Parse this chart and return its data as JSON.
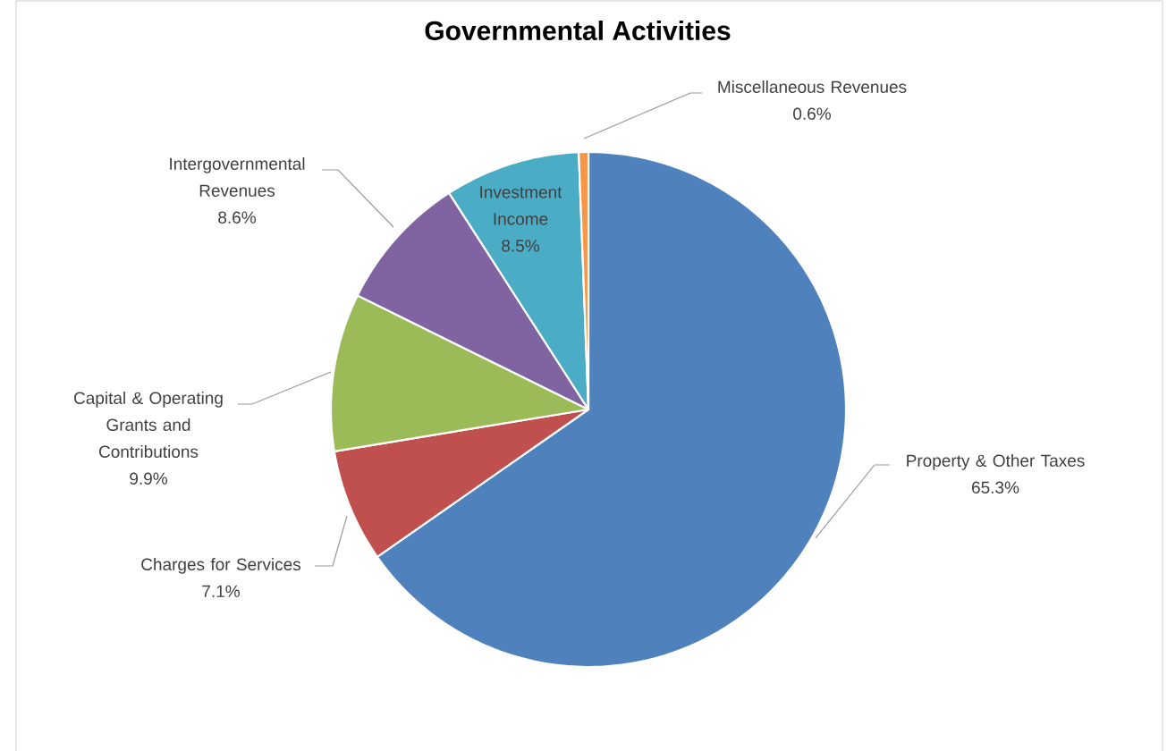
{
  "chart_data": {
    "type": "pie",
    "title": "Governmental Activities",
    "categories": [
      "Property & Other Taxes",
      "Charges for Services",
      "Capital & Operating Grants and Contributions",
      "Intergovernmental Revenues",
      "Investment Income",
      "Miscellaneous Revenues"
    ],
    "values": [
      65.3,
      7.1,
      9.9,
      8.6,
      8.5,
      0.6
    ],
    "colors": [
      "#4f81bd",
      "#c0504d",
      "#9bbb59",
      "#8064a2",
      "#4bacc6",
      "#f79646"
    ],
    "value_labels": [
      "65.3%",
      "7.1%",
      "9.9%",
      "8.6%",
      "8.5%",
      "0.6%"
    ]
  }
}
